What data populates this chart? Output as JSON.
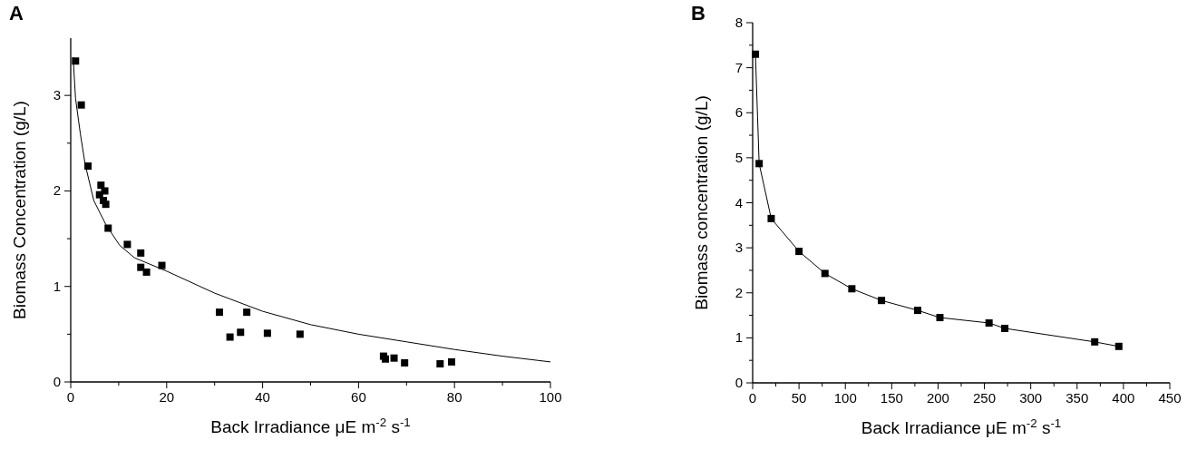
{
  "chart_data": [
    {
      "type": "scatter",
      "title": "A",
      "xlabel": "Back Irradiance μE m$^{-2}$ s$^{-1}$",
      "ylabel": "Biomass Concentration (g/L)",
      "marker": "square",
      "xlim": [
        0,
        100
      ],
      "ylim": [
        0,
        3.6
      ],
      "xticks": [
        0,
        {
          "value": 10,
          "label": null
        },
        20,
        {
          "value": 30,
          "label": null
        },
        40,
        {
          "value": 50,
          "label": null
        },
        60,
        {
          "value": 70,
          "label": null
        },
        80,
        {
          "value": 90,
          "label": null
        },
        100
      ],
      "yticks": [
        0,
        {
          "value": 0.5,
          "label": null
        },
        1,
        {
          "value": 1.5,
          "label": null
        },
        2,
        {
          "value": 2.5,
          "label": null
        },
        3
      ],
      "series": [
        {
          "color": "#000000",
          "x": [
            1,
            2.2,
            3.6,
            6,
            6.3,
            6.8,
            7.1,
            7.3,
            7.8,
            11.8,
            14.6,
            14.6,
            15.8,
            19,
            31,
            33.2,
            35.4,
            36.7,
            41,
            47.8,
            65.2,
            65.6,
            67.4,
            69.6,
            77,
            79.4
          ],
          "values": [
            3.36,
            2.9,
            2.26,
            1.96,
            2.06,
            1.9,
            2.0,
            1.86,
            1.61,
            1.44,
            1.35,
            1.2,
            1.15,
            1.22,
            0.73,
            0.47,
            0.52,
            0.73,
            0.51,
            0.5,
            0.27,
            0.24,
            0.25,
            0.2,
            0.19,
            0.21
          ]
        },
        {
          "type": "line",
          "color": "#000000",
          "marker": "none",
          "line_style": "solid",
          "x": [
            0.5,
            1,
            2,
            3,
            4.8,
            7.3,
            10.2,
            13.3,
            20,
            30,
            40,
            50,
            60,
            70,
            80,
            90,
            100
          ],
          "values": [
            3.4,
            2.97,
            2.6,
            2.28,
            1.9,
            1.65,
            1.43,
            1.3,
            1.16,
            0.93,
            0.74,
            0.6,
            0.5,
            0.42,
            0.34,
            0.27,
            0.21
          ]
        }
      ]
    },
    {
      "type": "line",
      "title": "B",
      "xlabel": "Back Irradiance μE m$^{-2}$ s$^{-1}$",
      "ylabel": "Biomass concentration (g/L)",
      "marker": "square",
      "line_style": "solid",
      "xlim": [
        0,
        450
      ],
      "ylim": [
        0,
        8
      ],
      "xticks": [
        0,
        {
          "value": 25,
          "label": null
        },
        50,
        {
          "value": 75,
          "label": null
        },
        100,
        {
          "value": 125,
          "label": null
        },
        150,
        {
          "value": 175,
          "label": null
        },
        200,
        {
          "value": 225,
          "label": null
        },
        250,
        {
          "value": 275,
          "label": null
        },
        300,
        {
          "value": 325,
          "label": null
        },
        350,
        {
          "value": 375,
          "label": null
        },
        400,
        {
          "value": 425,
          "label": null
        },
        450
      ],
      "yticks": [
        0,
        {
          "value": 0.5,
          "label": null
        },
        1,
        {
          "value": 1.5,
          "label": null
        },
        2,
        {
          "value": 2.5,
          "label": null
        },
        3,
        {
          "value": 3.5,
          "label": null
        },
        4,
        {
          "value": 4.5,
          "label": null
        },
        5,
        {
          "value": 5.5,
          "label": null
        },
        6,
        {
          "value": 6.5,
          "label": null
        },
        7,
        {
          "value": 7.5,
          "label": null
        },
        8
      ],
      "series": [
        {
          "color": "#000000",
          "x": [
            3,
            7,
            20,
            50,
            78,
            107,
            139,
            178,
            202,
            255,
            272,
            369,
            395
          ],
          "values": [
            7.3,
            4.87,
            3.65,
            2.92,
            2.43,
            2.09,
            1.83,
            1.61,
            1.45,
            1.33,
            1.21,
            0.91,
            0.81
          ]
        }
      ]
    }
  ]
}
